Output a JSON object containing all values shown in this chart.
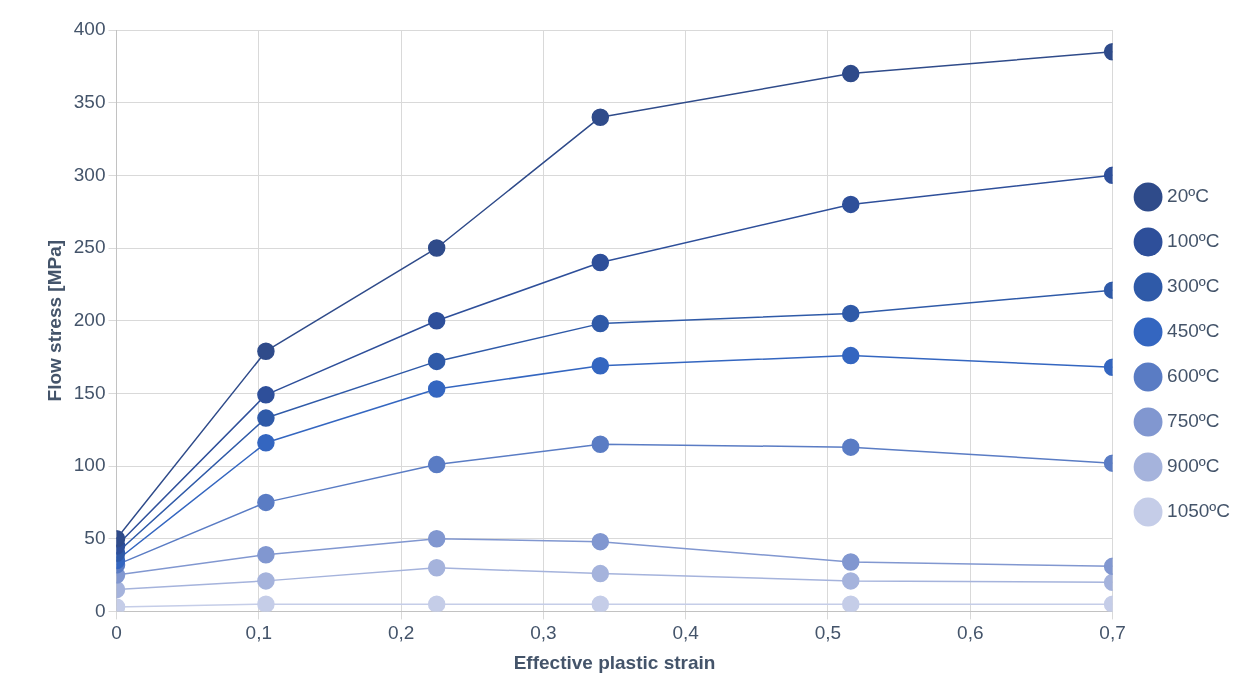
{
  "chart_data": {
    "type": "line",
    "xlabel": "Effective plastic strain",
    "ylabel": "Flow stress [MPa]",
    "x": [
      0,
      0.105,
      0.225,
      0.34,
      0.516,
      0.7
    ],
    "series": [
      {
        "name": "20ºC",
        "color": "#2f4b8a",
        "values": [
          50,
          179,
          250,
          340,
          370,
          385
        ]
      },
      {
        "name": "100ºC",
        "color": "#2e4f9a",
        "values": [
          45,
          149,
          200,
          240,
          280,
          300
        ]
      },
      {
        "name": "300ºC",
        "color": "#2f5aa8",
        "values": [
          40,
          133,
          172,
          198,
          205,
          221
        ]
      },
      {
        "name": "450ºC",
        "color": "#3466c0",
        "values": [
          35,
          116,
          153,
          169,
          176,
          168
        ]
      },
      {
        "name": "600ºC",
        "color": "#5a7cc4",
        "values": [
          32,
          75,
          101,
          115,
          113,
          102
        ]
      },
      {
        "name": "750ºC",
        "color": "#8197d0",
        "values": [
          25,
          39,
          50,
          48,
          34,
          31
        ]
      },
      {
        "name": "900ºC",
        "color": "#a5b3dc",
        "values": [
          15,
          21,
          30,
          26,
          21,
          20
        ]
      },
      {
        "name": "1050ºC",
        "color": "#c5cde8",
        "values": [
          3,
          5,
          5,
          5,
          5,
          5
        ]
      }
    ],
    "xlim": [
      0,
      0.7
    ],
    "xticks": [
      0,
      {
        "value": 0.1,
        "label": "0,1"
      },
      {
        "value": 0.2,
        "label": "0,2"
      },
      {
        "value": 0.3,
        "label": "0,3"
      },
      {
        "value": 0.4,
        "label": "0,4"
      },
      {
        "value": 0.5,
        "label": "0,5"
      },
      {
        "value": 0.6,
        "label": "0,6"
      },
      {
        "value": 0.7,
        "label": "0,7"
      }
    ],
    "ylim": [
      0,
      400
    ],
    "yticks": [
      0,
      50,
      100,
      150,
      200,
      250,
      300,
      350,
      400
    ],
    "grid": true,
    "legend": "right",
    "marker": "circle",
    "line_style": "solid"
  }
}
